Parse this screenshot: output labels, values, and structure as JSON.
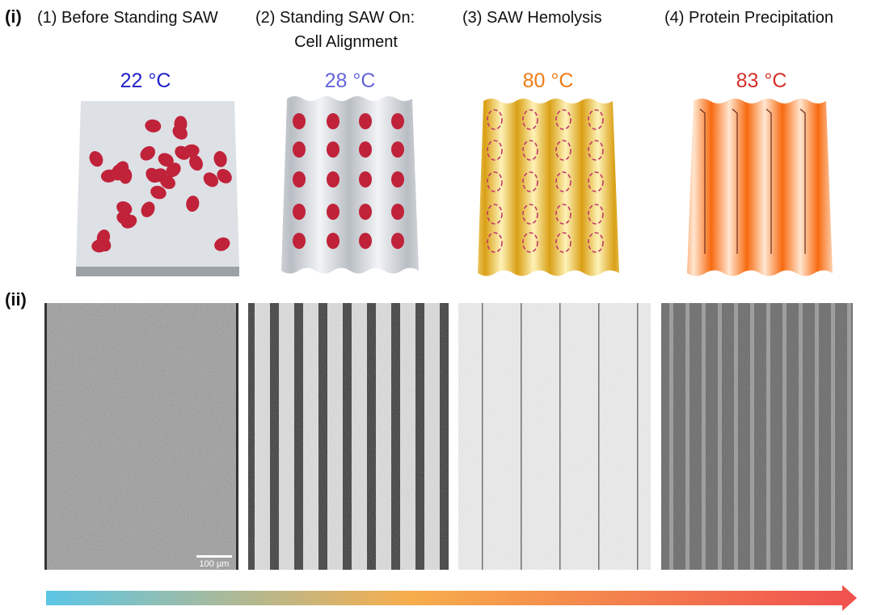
{
  "panels": {
    "i": {
      "label": "(i)"
    },
    "ii": {
      "label": "(ii)"
    }
  },
  "stages": [
    {
      "title": "(1) Before Standing SAW",
      "temperature": "22 °C"
    },
    {
      "title": "(2) Standing SAW On:",
      "title_line2": "Cell Alignment",
      "temperature": "28 °C"
    },
    {
      "title": "(3)  SAW Hemolysis",
      "temperature": "80 °C"
    },
    {
      "title": "(4) Protein Precipitation",
      "temperature": "83 °C"
    }
  ],
  "scale_bar": "100 µm"
}
